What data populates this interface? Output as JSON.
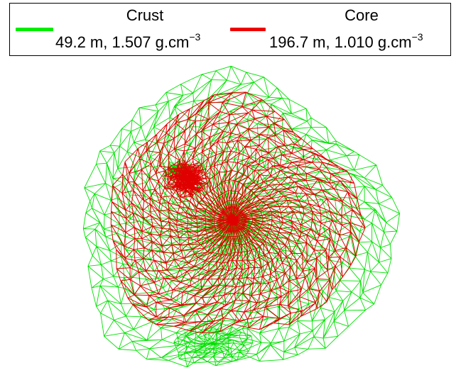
{
  "legend": {
    "items": [
      {
        "name": "Crust",
        "value": "49.2 m, 1.507 g.cm",
        "exponent": "−3",
        "color": "#00ee00"
      },
      {
        "name": "Core",
        "value": "196.7 m, 1.010 g.cm",
        "exponent": "−3",
        "color": "#ee0000"
      }
    ]
  },
  "colors": {
    "crust_mesh": "#00e000",
    "core_mesh": "#e00000",
    "background": "#ffffff"
  }
}
